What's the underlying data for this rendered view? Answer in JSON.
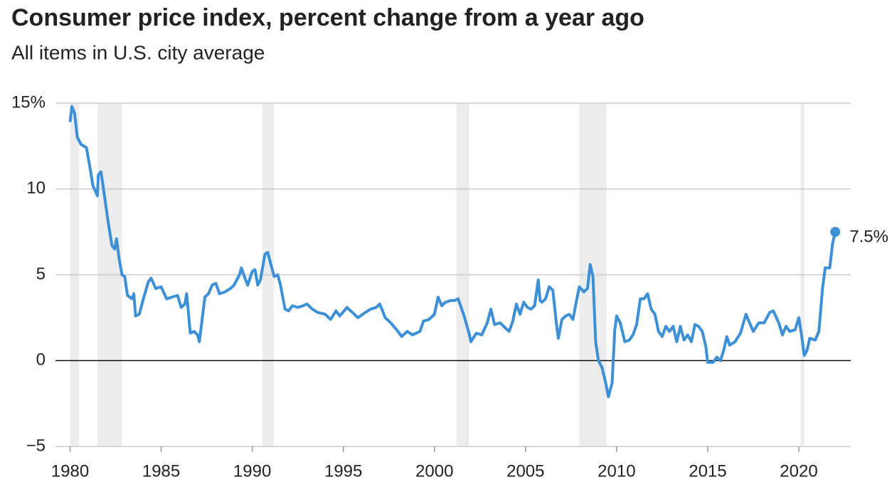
{
  "chart_data": {
    "type": "line",
    "title": "Consumer price index, percent change from a year ago",
    "subtitle": "All items in U.S. city average",
    "xlim": [
      1979.2,
      2022.85
    ],
    "ylim": [
      -5,
      15
    ],
    "xticks": [
      1980,
      1985,
      1990,
      1995,
      2000,
      2005,
      2010,
      2015,
      2020
    ],
    "yticks": [
      {
        "value": -5,
        "label": "−5"
      },
      0,
      5,
      10,
      {
        "value": 15,
        "label": "15%"
      }
    ],
    "grid": true,
    "recessions": [
      [
        1980.0,
        1980.5
      ],
      [
        1981.5,
        1982.85
      ],
      [
        1990.55,
        1991.2
      ],
      [
        2001.2,
        2001.9
      ],
      [
        2007.95,
        2009.45
      ],
      [
        2020.1,
        2020.3
      ]
    ],
    "series": [
      {
        "color": "#3d8fd6",
        "x": [
          1980.0,
          1980.1,
          1980.25,
          1980.4,
          1980.6,
          1980.9,
          1981.1,
          1981.25,
          1981.5,
          1981.55,
          1981.7,
          1981.9,
          1982.1,
          1982.3,
          1982.45,
          1982.55,
          1982.7,
          1982.85,
          1983.0,
          1983.15,
          1983.4,
          1983.5,
          1983.6,
          1983.8,
          1984.0,
          1984.3,
          1984.45,
          1984.7,
          1985.0,
          1985.3,
          1985.6,
          1985.9,
          1986.1,
          1986.3,
          1986.4,
          1986.6,
          1986.8,
          1987.0,
          1987.1,
          1987.4,
          1987.6,
          1987.8,
          1988.0,
          1988.2,
          1988.5,
          1988.8,
          1989.0,
          1989.3,
          1989.4,
          1989.6,
          1989.75,
          1990.0,
          1990.15,
          1990.3,
          1990.45,
          1990.7,
          1990.85,
          1991.0,
          1991.2,
          1991.4,
          1991.55,
          1991.8,
          1992.0,
          1992.2,
          1992.5,
          1992.8,
          1993.0,
          1993.3,
          1993.6,
          1994.0,
          1994.3,
          1994.6,
          1994.8,
          1995.2,
          1995.5,
          1995.8,
          1996.2,
          1996.5,
          1996.8,
          1997.0,
          1997.3,
          1997.6,
          1998.0,
          1998.2,
          1998.5,
          1998.8,
          1999.2,
          1999.4,
          1999.7,
          2000.0,
          2000.2,
          2000.4,
          2000.6,
          2000.9,
          2001.1,
          2001.3,
          2001.6,
          2001.9,
          2002.0,
          2002.3,
          2002.6,
          2002.9,
          2003.1,
          2003.3,
          2003.6,
          2003.9,
          2004.1,
          2004.3,
          2004.5,
          2004.7,
          2004.9,
          2005.1,
          2005.3,
          2005.5,
          2005.7,
          2005.8,
          2005.9,
          2006.1,
          2006.3,
          2006.5,
          2006.7,
          2006.8,
          2007.0,
          2007.2,
          2007.4,
          2007.6,
          2007.8,
          2007.95,
          2008.2,
          2008.4,
          2008.55,
          2008.7,
          2008.85,
          2009.0,
          2009.2,
          2009.4,
          2009.55,
          2009.75,
          2009.9,
          2010.0,
          2010.2,
          2010.45,
          2010.7,
          2010.9,
          2011.1,
          2011.3,
          2011.5,
          2011.7,
          2011.9,
          2012.1,
          2012.3,
          2012.5,
          2012.7,
          2012.9,
          2013.1,
          2013.3,
          2013.5,
          2013.7,
          2013.9,
          2014.1,
          2014.3,
          2014.5,
          2014.7,
          2014.9,
          2015.0,
          2015.3,
          2015.5,
          2015.7,
          2015.9,
          2016.05,
          2016.2,
          2016.5,
          2016.8,
          2017.1,
          2017.3,
          2017.5,
          2017.8,
          2018.1,
          2018.4,
          2018.6,
          2018.9,
          2019.1,
          2019.3,
          2019.5,
          2019.8,
          2020.0,
          2020.15,
          2020.3,
          2020.45,
          2020.6,
          2020.9,
          2021.1,
          2021.3,
          2021.45,
          2021.7,
          2021.85,
          2022.0
        ],
        "values": [
          13.9,
          14.8,
          14.4,
          13.0,
          12.6,
          12.4,
          11.2,
          10.2,
          9.6,
          10.8,
          11.0,
          9.5,
          8.0,
          6.7,
          6.5,
          7.1,
          5.9,
          5.0,
          4.9,
          3.8,
          3.6,
          3.9,
          2.6,
          2.7,
          3.5,
          4.6,
          4.8,
          4.2,
          4.3,
          3.6,
          3.7,
          3.8,
          3.1,
          3.3,
          3.9,
          1.6,
          1.7,
          1.5,
          1.1,
          3.7,
          3.9,
          4.4,
          4.5,
          3.9,
          4.0,
          4.2,
          4.4,
          5.0,
          5.4,
          4.8,
          4.4,
          5.2,
          5.3,
          4.4,
          4.7,
          6.2,
          6.3,
          5.7,
          4.9,
          5.0,
          4.4,
          3.0,
          2.9,
          3.2,
          3.1,
          3.2,
          3.3,
          3.0,
          2.8,
          2.7,
          2.4,
          2.9,
          2.6,
          3.1,
          2.8,
          2.5,
          2.8,
          3.0,
          3.1,
          3.3,
          2.5,
          2.2,
          1.7,
          1.4,
          1.7,
          1.5,
          1.7,
          2.3,
          2.4,
          2.7,
          3.7,
          3.2,
          3.4,
          3.5,
          3.5,
          3.6,
          2.7,
          1.6,
          1.1,
          1.6,
          1.5,
          2.2,
          3.0,
          2.1,
          2.2,
          1.9,
          1.7,
          2.3,
          3.3,
          2.7,
          3.4,
          3.1,
          3.0,
          3.2,
          4.7,
          3.5,
          3.4,
          3.6,
          4.3,
          4.1,
          2.1,
          1.3,
          2.4,
          2.6,
          2.7,
          2.4,
          3.5,
          4.3,
          4.0,
          4.2,
          5.6,
          4.9,
          1.1,
          0.0,
          -0.4,
          -1.3,
          -2.1,
          -1.3,
          1.8,
          2.6,
          2.2,
          1.1,
          1.2,
          1.5,
          2.1,
          3.6,
          3.6,
          3.9,
          3.0,
          2.7,
          1.7,
          1.4,
          2.0,
          1.7,
          2.0,
          1.1,
          2.0,
          1.2,
          1.5,
          1.1,
          2.1,
          2.0,
          1.7,
          0.8,
          -0.1,
          -0.1,
          0.2,
          0.0,
          0.7,
          1.4,
          0.9,
          1.1,
          1.6,
          2.7,
          2.2,
          1.7,
          2.2,
          2.2,
          2.8,
          2.9,
          2.2,
          1.5,
          2.0,
          1.7,
          1.8,
          2.5,
          1.5,
          0.3,
          0.6,
          1.3,
          1.2,
          1.7,
          4.2,
          5.4,
          5.4,
          6.8,
          7.5
        ]
      }
    ],
    "annotations": [
      {
        "x": 2022.0,
        "y": 7.5,
        "label": "7.5%"
      }
    ]
  }
}
